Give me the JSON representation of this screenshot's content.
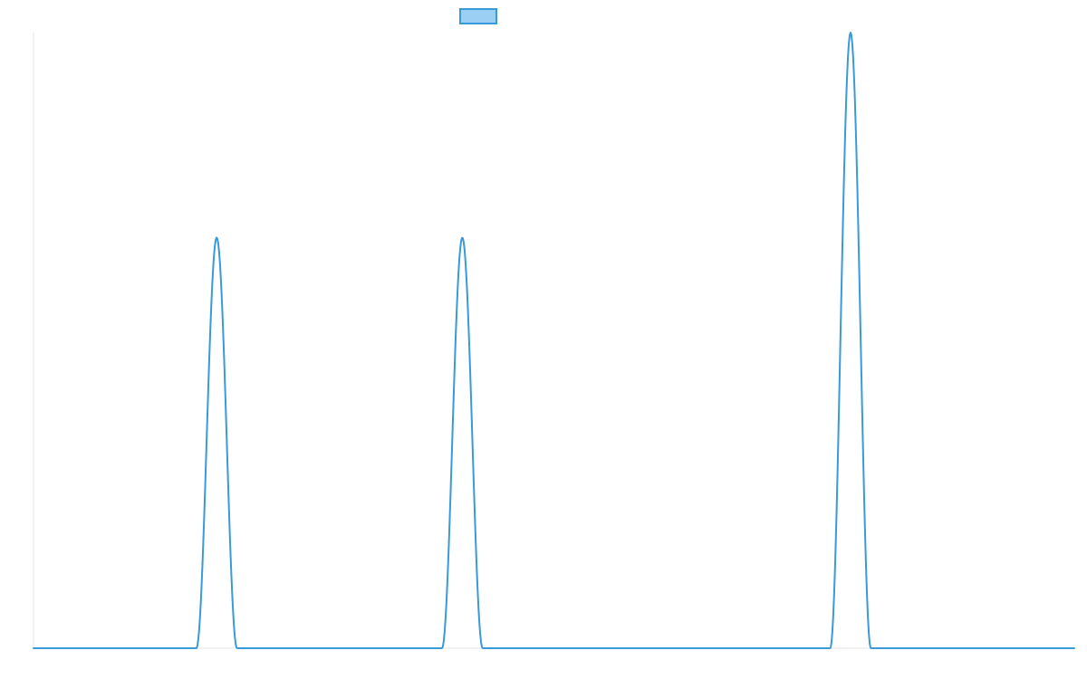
{
  "chart_data": {
    "type": "line",
    "title": "",
    "xlabel": "",
    "ylabel": "",
    "xlim": [
      0,
      100
    ],
    "ylim": [
      0,
      1
    ],
    "grid": false,
    "legend_position": "top-center",
    "series": [
      {
        "line_color": "#3a9ad9",
        "fill_color": "#9bd0f4",
        "peaks": [
          {
            "center": 17.6,
            "height": 0.667,
            "half_width": 1.95
          },
          {
            "center": 41.2,
            "height": 0.667,
            "half_width": 1.95
          },
          {
            "center": 78.5,
            "height": 1.0,
            "half_width": 1.95
          }
        ],
        "baseline": 0
      }
    ]
  }
}
